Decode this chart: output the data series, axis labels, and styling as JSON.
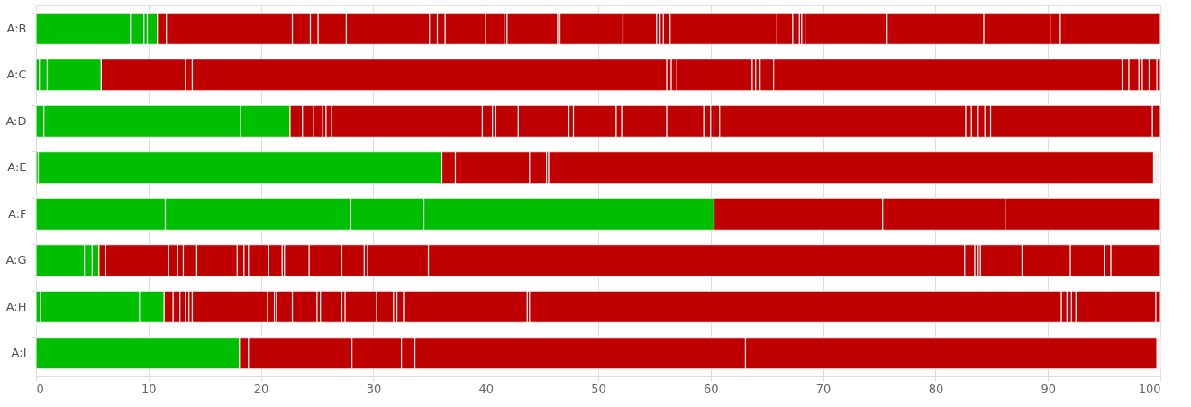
{
  "chart_data": {
    "type": "bar",
    "orientation": "horizontal",
    "stacked": true,
    "categories": [
      "A:B",
      "A:C",
      "A:D",
      "A:E",
      "A:F",
      "A:G",
      "A:H",
      "A:I"
    ],
    "xlim": [
      0,
      100
    ],
    "xticks": [
      0,
      10,
      20,
      30,
      40,
      50,
      60,
      70,
      80,
      90,
      100
    ],
    "grid": true,
    "series": [
      {
        "values": [
          8.4,
          0.3,
          0.7,
          0.2,
          11.5,
          4.3,
          0.4,
          18.1
        ],
        "colors": [
          "#00bf00",
          "#00bf00",
          "#00bf00",
          "#00bf00",
          "#00bf00",
          "#00bf00",
          "#00bf00",
          "#00bf00"
        ]
      },
      {
        "values": [
          1.2,
          0.7,
          17.5,
          35.9,
          16.5,
          0.7,
          8.8,
          0.8
        ],
        "colors": [
          "#00bf00",
          "#00bf00",
          "#00bf00",
          "#00bf00",
          "#00bf00",
          "#00bf00",
          "#00bf00",
          "#c00000"
        ]
      },
      {
        "values": [
          0.3,
          4.8,
          4.4,
          1.2,
          6.5,
          0.6,
          2.2,
          9.2
        ],
        "colors": [
          "#00bf00",
          "#00bf00",
          "#00bf00",
          "#c00000",
          "#00bf00",
          "#00bf00",
          "#00bf00",
          "#c00000"
        ]
      },
      {
        "values": [
          0.9,
          7.5,
          1.1,
          6.6,
          25.8,
          0.6,
          0.8,
          4.4
        ],
        "colors": [
          "#00bf00",
          "#c00000",
          "#c00000",
          "#c00000",
          "#00bf00",
          "#c00000",
          "#c00000",
          "#c00000"
        ]
      },
      {
        "values": [
          0.8,
          0.6,
          1.0,
          1.5,
          15.0,
          5.6,
          0.6,
          1.2
        ],
        "color": "#c00000"
      },
      {
        "values": [
          11.2,
          42.2,
          0.8,
          0.2,
          10.9,
          0.8,
          0.5,
          29.4
        ],
        "color": "#c00000"
      },
      {
        "values": [
          1.6,
          0.4,
          0.3,
          53.8,
          13.8,
          0.5,
          0.3,
          36.6
        ],
        "color": "#c00000"
      },
      {
        "values": [
          0.7,
          0.5,
          0.5,
          0.6,
          null,
          1.2,
          0.3,
          0.3
        ],
        "colors": [
          "#c00000",
          "#c00000",
          "#c00000",
          "#f7eeee",
          null,
          "#c00000",
          "#c00000",
          "#f7eeee"
        ]
      },
      {
        "values": [
          2.5,
          6.7,
          13.4,
          null,
          null,
          3.6,
          6.7,
          null
        ],
        "color": "#c00000"
      },
      {
        "values": [
          7.4,
          0.3,
          0.9,
          null,
          null,
          0.6,
          0.6,
          null
        ],
        "color": "#c00000"
      },
      {
        "values": [
          0.7,
          0.4,
          0.3,
          null,
          null,
          0.4,
          0.2,
          null
        ],
        "color": "#c00000"
      },
      {
        "values": [
          0.7,
          1.2,
          2.0,
          null,
          null,
          1.8,
          1.4,
          null
        ],
        "color": "#c00000"
      },
      {
        "values": [
          3.6,
          31.0,
          4.5,
          null,
          null,
          1.2,
          2.2,
          null
        ],
        "color": "#c00000"
      },
      {
        "values": [
          1.7,
          0.6,
          0.4,
          null,
          null,
          0.2,
          0.3,
          null
        ],
        "color": "#c00000"
      },
      {
        "values": [
          0.2,
          0.9,
          3.8,
          null,
          null,
          2.2,
          1.9,
          null
        ],
        "color": "#c00000"
      },
      {
        "values": [
          4.5,
          0.3,
          0.5,
          null,
          null,
          2.9,
          0.3,
          null
        ],
        "color": "#c00000"
      },
      {
        "values": [
          0.2,
          0.6,
          4.0,
          null,
          null,
          2.0,
          2.8,
          null
        ],
        "color": "#c00000"
      },
      {
        "values": [
          5.6,
          0.7,
          3.3,
          null,
          null,
          0.3,
          1.5,
          null
        ],
        "color": "#c00000"
      },
      {
        "values": [
          3.0,
          0.3,
          0.6,
          null,
          null,
          5.4,
          0.3,
          null
        ],
        "color": "#c00000"
      },
      {
        "values": [
          0.3,
          null,
          0.8,
          null,
          null,
          47.7,
          0.6,
          null
        ],
        "color": "#c00000"
      },
      {
        "values": [
          0.3,
          null,
          21.9,
          null,
          null,
          0.9,
          11.0,
          null
        ],
        "color": "#c00000"
      },
      {
        "values": [
          0.6,
          null,
          0.5,
          null,
          null,
          0.3,
          0.2,
          null
        ],
        "color": "#c00000"
      },
      {
        "values": [
          9.5,
          null,
          0.6,
          null,
          null,
          0.2,
          47.3,
          null
        ],
        "color": "#c00000"
      },
      {
        "values": [
          1.4,
          null,
          0.6,
          null,
          null,
          3.7,
          0.5,
          null
        ],
        "color": "#c00000"
      },
      {
        "values": [
          0.6,
          null,
          0.5,
          null,
          null,
          4.3,
          0.4,
          null
        ],
        "color": "#c00000"
      },
      {
        "values": [
          0.2,
          null,
          14.4,
          null,
          null,
          3.0,
          0.4,
          null
        ],
        "color": "#c00000"
      },
      {
        "values": [
          0.3,
          null,
          0.7,
          null,
          null,
          0.6,
          7.1,
          null
        ],
        "color": "#c00000"
      },
      {
        "values": [
          7.3,
          null,
          null,
          null,
          null,
          4.4,
          0.4,
          null
        ],
        "color": "#c00000"
      },
      {
        "values": [
          8.6,
          null,
          null,
          null,
          null,
          null,
          null,
          null
        ],
        "color": "#c00000"
      },
      {
        "values": [
          5.9,
          null,
          null,
          null,
          null,
          null,
          null,
          null
        ],
        "color": "#c00000"
      },
      {
        "values": [
          0.9,
          null,
          null,
          null,
          null,
          null,
          null,
          null
        ],
        "color": "#c00000"
      },
      {
        "values": [
          8.9,
          null,
          null,
          null,
          null,
          null,
          null,
          null
        ],
        "color": "#c00000"
      }
    ]
  }
}
